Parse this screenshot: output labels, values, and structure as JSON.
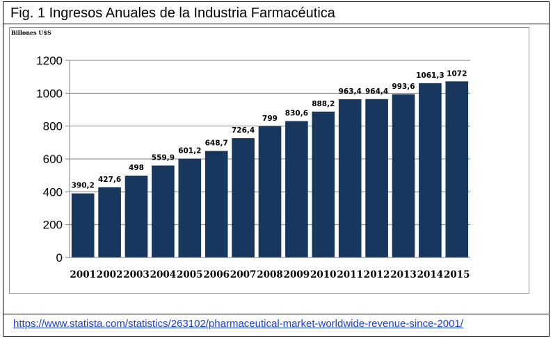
{
  "figure": {
    "title": "Fig. 1  Ingresos Anuales de la Industria Farmacéutica",
    "source_link": "https://www.statista.com/statistics/263102/pharmaceutical-market-worldwide-revenue-since-2001/"
  },
  "chart_data": {
    "type": "bar",
    "title": "",
    "ylabel": "Billones U$S",
    "xlabel": "",
    "categories": [
      "2001",
      "2002",
      "2003",
      "2004",
      "2005",
      "2006",
      "2007",
      "2008",
      "2009",
      "2010",
      "2011",
      "2012",
      "2013",
      "2014",
      "2015"
    ],
    "values": [
      390.2,
      427.6,
      498,
      559.9,
      601.2,
      648.7,
      726.4,
      799,
      830.6,
      888.2,
      963.4,
      964.4,
      993.6,
      1061.3,
      1072
    ],
    "value_labels": [
      "390,2",
      "427,6",
      "498",
      "559,9",
      "601,2",
      "648,7",
      "726,4",
      "799",
      "830,6",
      "888,2",
      "963,4",
      "964,4",
      "993,6",
      "1061,3",
      "1072"
    ],
    "ylim": [
      0,
      1200
    ],
    "yticks": [
      0,
      200,
      400,
      600,
      800,
      1000,
      1200
    ],
    "grid": true,
    "bar_color": "#17375e"
  }
}
